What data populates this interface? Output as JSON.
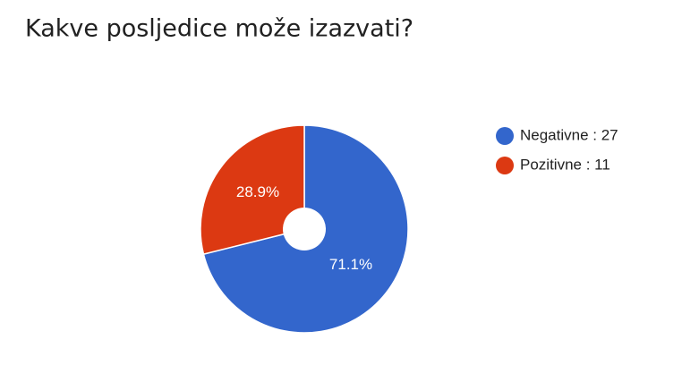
{
  "chart_data": {
    "type": "pie",
    "title": "Kakve posljedice može izazvati?",
    "categories": [
      "Negativne : 27",
      "Pozitivne : 11"
    ],
    "values": [
      71.1,
      28.9
    ],
    "value_labels": [
      "71.1%",
      "28.9%"
    ],
    "colors": [
      "#3366cc",
      "#dc3912"
    ],
    "donut": true
  }
}
